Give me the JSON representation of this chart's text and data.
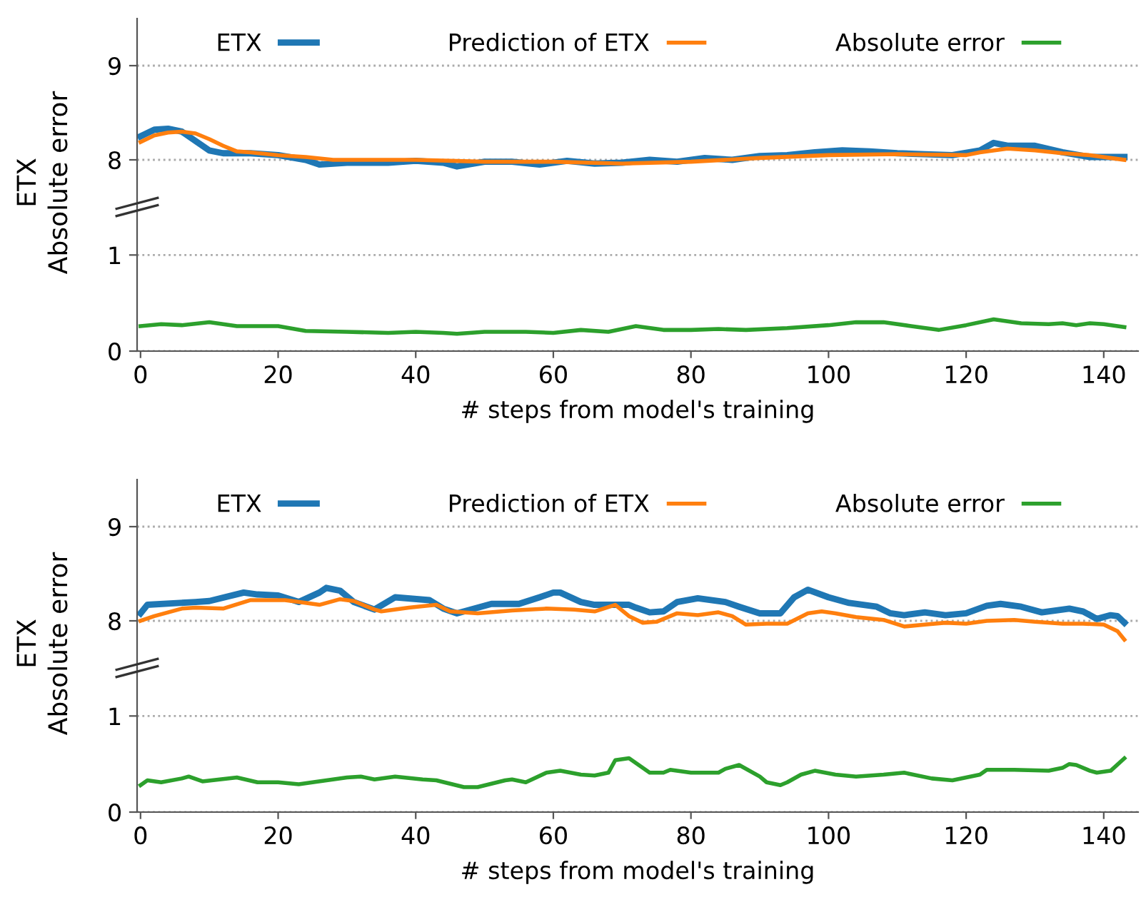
{
  "chart_data": [
    {
      "type": "line",
      "ylabel": "ETX",
      "xlim": [
        -0.5,
        145
      ],
      "ylim": [
        7.5,
        9.5
      ],
      "yticks": [
        8,
        9
      ],
      "tick_labels": "y",
      "grid": "y",
      "legend": "top",
      "line_style": "solid",
      "marker": "none",
      "series": [
        {
          "name": "ETX",
          "color": "#1f77b4",
          "x": [
            0,
            2,
            4,
            6,
            8,
            10,
            12,
            16,
            20,
            24,
            26,
            30,
            36,
            40,
            44,
            46,
            50,
            54,
            58,
            62,
            66,
            70,
            74,
            78,
            82,
            86,
            90,
            94,
            98,
            102,
            106,
            110,
            114,
            118,
            122,
            124,
            126,
            130,
            134,
            138,
            143
          ],
          "values": [
            8.25,
            8.32,
            8.33,
            8.3,
            8.2,
            8.1,
            8.07,
            8.07,
            8.05,
            8.0,
            7.95,
            7.97,
            7.97,
            7.99,
            7.97,
            7.93,
            7.98,
            7.98,
            7.95,
            7.99,
            7.96,
            7.97,
            8.0,
            7.98,
            8.02,
            8.0,
            8.04,
            8.05,
            8.08,
            8.1,
            8.09,
            8.07,
            8.06,
            8.05,
            8.1,
            8.18,
            8.15,
            8.15,
            8.08,
            8.03,
            8.03
          ]
        },
        {
          "name": "Prediction of ETX",
          "color": "#ff7f0e",
          "x": [
            0,
            2,
            4,
            6,
            8,
            10,
            12,
            14,
            16,
            20,
            24,
            28,
            40,
            50,
            60,
            70,
            80,
            90,
            100,
            110,
            120,
            122,
            126,
            130,
            134,
            138,
            143
          ],
          "values": [
            8.19,
            8.26,
            8.29,
            8.3,
            8.28,
            8.22,
            8.15,
            8.09,
            8.08,
            8.05,
            8.03,
            8.0,
            8.0,
            7.98,
            7.98,
            7.96,
            7.98,
            8.02,
            8.05,
            8.06,
            8.05,
            8.08,
            8.12,
            8.1,
            8.07,
            8.05,
            8.0
          ]
        }
      ]
    },
    {
      "type": "line",
      "ylabel": "Absolute error",
      "xlabel": "# steps from model's training",
      "xlim": [
        -0.5,
        145
      ],
      "xticks": [
        0,
        20,
        40,
        60,
        80,
        100,
        120,
        140
      ],
      "ylim": [
        0,
        1.5
      ],
      "yticks": [
        0,
        1
      ],
      "grid": "y",
      "line_style": "solid",
      "marker": "none",
      "series": [
        {
          "name": "Absolute error",
          "color": "#2ca02c",
          "x": [
            0,
            3,
            6,
            10,
            14,
            20,
            24,
            30,
            36,
            40,
            44,
            46,
            50,
            56,
            60,
            64,
            68,
            72,
            76,
            80,
            84,
            88,
            94,
            100,
            104,
            108,
            112,
            116,
            120,
            124,
            128,
            132,
            134,
            136,
            138,
            140,
            143
          ],
          "values": [
            0.26,
            0.28,
            0.27,
            0.3,
            0.26,
            0.26,
            0.21,
            0.2,
            0.19,
            0.2,
            0.19,
            0.18,
            0.2,
            0.2,
            0.19,
            0.22,
            0.2,
            0.26,
            0.22,
            0.22,
            0.23,
            0.22,
            0.24,
            0.27,
            0.3,
            0.3,
            0.26,
            0.22,
            0.27,
            0.33,
            0.29,
            0.28,
            0.29,
            0.27,
            0.29,
            0.28,
            0.25
          ]
        }
      ]
    },
    {
      "type": "line",
      "ylabel": "ETX",
      "xlim": [
        -0.5,
        145
      ],
      "ylim": [
        7.5,
        9.5
      ],
      "yticks": [
        8,
        9
      ],
      "tick_labels": "y",
      "grid": "y",
      "legend": "top",
      "line_style": "solid",
      "marker": "none",
      "series": [
        {
          "name": "ETX",
          "color": "#1f77b4",
          "x": [
            0,
            1,
            8,
            10,
            15,
            17,
            20,
            23,
            26,
            27,
            29,
            31,
            34,
            37,
            42,
            44,
            46,
            51,
            55,
            58,
            60,
            61,
            64,
            66,
            71,
            72,
            74,
            76,
            78,
            81,
            85,
            87,
            90,
            93,
            95,
            97,
            100,
            103,
            107,
            109,
            111,
            114,
            117,
            120,
            123,
            125,
            128,
            131,
            135,
            137,
            139,
            141,
            142,
            143
          ],
          "values": [
            8.08,
            8.17,
            8.2,
            8.21,
            8.3,
            8.28,
            8.27,
            8.2,
            8.3,
            8.35,
            8.32,
            8.2,
            8.12,
            8.25,
            8.22,
            8.13,
            8.08,
            8.18,
            8.18,
            8.25,
            8.3,
            8.3,
            8.2,
            8.17,
            8.17,
            8.14,
            8.09,
            8.1,
            8.2,
            8.24,
            8.2,
            8.15,
            8.08,
            8.08,
            8.25,
            8.33,
            8.25,
            8.19,
            8.15,
            8.08,
            8.06,
            8.09,
            8.06,
            8.08,
            8.16,
            8.18,
            8.15,
            8.09,
            8.13,
            8.1,
            8.02,
            8.06,
            8.05,
            7.98
          ]
        },
        {
          "name": "Prediction of ETX",
          "color": "#ff7f0e",
          "x": [
            0,
            2,
            6,
            8,
            12,
            16,
            21,
            23,
            26,
            29,
            31,
            34,
            35,
            39,
            43,
            45,
            49,
            54,
            59,
            63,
            66,
            69,
            71,
            73,
            75,
            78,
            81,
            84,
            86,
            88,
            91,
            94,
            97,
            99,
            101,
            104,
            108,
            111,
            114,
            117,
            120,
            123,
            127,
            130,
            134,
            137,
            140,
            142,
            143
          ],
          "values": [
            8.0,
            8.05,
            8.13,
            8.14,
            8.13,
            8.22,
            8.22,
            8.2,
            8.17,
            8.23,
            8.21,
            8.12,
            8.1,
            8.14,
            8.17,
            8.1,
            8.08,
            8.11,
            8.13,
            8.12,
            8.1,
            8.17,
            8.05,
            7.98,
            7.99,
            8.08,
            8.06,
            8.09,
            8.05,
            7.96,
            7.97,
            7.97,
            8.08,
            8.1,
            8.08,
            8.04,
            8.01,
            7.94,
            7.96,
            7.98,
            7.97,
            8.0,
            8.01,
            7.99,
            7.97,
            7.97,
            7.96,
            7.89,
            7.8
          ]
        }
      ]
    },
    {
      "type": "line",
      "ylabel": "Absolute error",
      "xlabel": "# steps from model's training",
      "xlim": [
        -0.5,
        145
      ],
      "xticks": [
        0,
        20,
        40,
        60,
        80,
        100,
        120,
        140
      ],
      "ylim": [
        0,
        1.5
      ],
      "yticks": [
        0,
        1
      ],
      "grid": "y",
      "line_style": "solid",
      "marker": "none",
      "series": [
        {
          "name": "Absolute error",
          "color": "#2ca02c",
          "x": [
            0,
            1,
            3,
            6,
            7,
            9,
            14,
            17,
            20,
            23,
            25,
            30,
            32,
            34,
            37,
            41,
            43,
            47,
            49,
            53,
            54,
            56,
            59,
            61,
            64,
            66,
            68,
            69,
            71,
            73,
            74,
            76,
            77,
            80,
            84,
            85,
            87,
            90,
            91,
            93,
            94,
            96,
            98,
            101,
            104,
            108,
            111,
            115,
            118,
            122,
            123,
            127,
            132,
            134,
            135,
            136,
            138,
            139,
            141,
            143
          ],
          "values": [
            0.28,
            0.33,
            0.31,
            0.35,
            0.37,
            0.32,
            0.36,
            0.31,
            0.31,
            0.29,
            0.31,
            0.36,
            0.37,
            0.34,
            0.37,
            0.34,
            0.33,
            0.26,
            0.26,
            0.33,
            0.34,
            0.31,
            0.41,
            0.43,
            0.39,
            0.38,
            0.41,
            0.54,
            0.56,
            0.46,
            0.41,
            0.41,
            0.44,
            0.41,
            0.41,
            0.45,
            0.49,
            0.37,
            0.31,
            0.28,
            0.31,
            0.39,
            0.43,
            0.39,
            0.37,
            0.39,
            0.41,
            0.35,
            0.33,
            0.39,
            0.44,
            0.44,
            0.43,
            0.46,
            0.5,
            0.49,
            0.43,
            0.41,
            0.43,
            0.56
          ]
        }
      ]
    }
  ]
}
